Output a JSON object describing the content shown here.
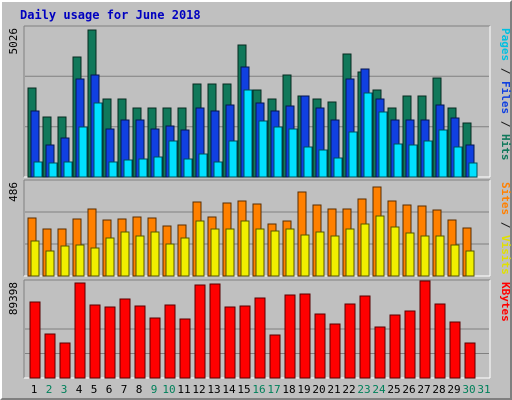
{
  "chart_data": [
    {
      "type": "bar",
      "title": "Daily usage for June 2018",
      "ymax_label": "5026",
      "right_label_parts": [
        {
          "text": "Pages",
          "color": "#00c0e0"
        },
        {
          "text": " / ",
          "color": "#1a1a1a"
        },
        {
          "text": "Files",
          "color": "#1040e0"
        },
        {
          "text": " / ",
          "color": "#1a1a1a"
        },
        {
          "text": "Hits",
          "color": "#10785a"
        }
      ],
      "categories": [
        "1",
        "2",
        "3",
        "4",
        "5",
        "6",
        "7",
        "8",
        "9",
        "10",
        "11",
        "12",
        "13",
        "14",
        "15",
        "16",
        "17",
        "18",
        "19",
        "20",
        "21",
        "22",
        "23",
        "24",
        "25",
        "26",
        "27",
        "28",
        "29",
        "30",
        "31"
      ],
      "weekend_days": [
        2,
        3,
        9,
        10,
        16,
        17,
        23,
        24,
        30,
        31
      ],
      "series": [
        {
          "name": "Hits",
          "color": "#10785a",
          "values": [
            2950,
            2000,
            2000,
            4000,
            4900,
            2600,
            2600,
            2300,
            2300,
            2300,
            2300,
            3100,
            3100,
            3100,
            4400,
            2900,
            2600,
            3400,
            2700,
            2600,
            2500,
            4100,
            3500,
            2900,
            2300,
            2700,
            2700,
            3300,
            2300,
            1800,
            null
          ]
        },
        {
          "name": "Files",
          "color": "#1040e0",
          "values": [
            2200,
            1050,
            1300,
            3250,
            3400,
            1600,
            1900,
            1900,
            1600,
            1700,
            1550,
            2300,
            2200,
            2400,
            3650,
            2450,
            2200,
            2350,
            2700,
            2300,
            1900,
            3250,
            3600,
            2600,
            1900,
            1900,
            1900,
            2400,
            1950,
            1050,
            null
          ]
        },
        {
          "name": "Pages",
          "color": "#00e0ff",
          "values": [
            500,
            450,
            500,
            1650,
            2450,
            500,
            560,
            600,
            650,
            1200,
            600,
            750,
            500,
            1200,
            2900,
            1850,
            1650,
            1600,
            1000,
            900,
            640,
            1500,
            2800,
            2150,
            1100,
            1050,
            1200,
            1550,
            1000,
            450,
            null
          ]
        }
      ]
    },
    {
      "type": "bar",
      "ymax_label": "486",
      "right_label_parts": [
        {
          "text": "Sites",
          "color": "#ff8000"
        },
        {
          "text": " / ",
          "color": "#1a1a1a"
        },
        {
          "text": "Visits",
          "color": "#e0e000"
        }
      ],
      "series": [
        {
          "name": "Sites",
          "color": "#ff8000",
          "values": [
            295,
            240,
            240,
            288,
            340,
            285,
            290,
            300,
            295,
            255,
            260,
            375,
            300,
            370,
            380,
            365,
            265,
            280,
            425,
            360,
            340,
            340,
            390,
            450,
            380,
            360,
            355,
            335,
            285,
            245,
            null
          ]
        },
        {
          "name": "Visits",
          "color": "#f0f000",
          "values": [
            175,
            125,
            150,
            155,
            140,
            190,
            225,
            200,
            225,
            160,
            190,
            280,
            240,
            240,
            280,
            240,
            230,
            240,
            210,
            225,
            200,
            240,
            265,
            305,
            250,
            220,
            200,
            200,
            155,
            125,
            null
          ]
        }
      ]
    },
    {
      "type": "bar",
      "ymax_label": "89398",
      "right_label_parts": [
        {
          "text": "KBytes",
          "color": "#ff0000"
        }
      ],
      "series": [
        {
          "name": "KBytes",
          "color": "#ff0000",
          "values": [
            78000,
            45000,
            36000,
            97000,
            74000,
            72000,
            81000,
            73000,
            61000,
            74000,
            60000,
            95000,
            96000,
            72000,
            73000,
            82000,
            44000,
            85000,
            86000,
            65000,
            55000,
            75000,
            84000,
            52000,
            64000,
            68000,
            99000,
            75000,
            57000,
            36000,
            null
          ]
        }
      ]
    }
  ]
}
